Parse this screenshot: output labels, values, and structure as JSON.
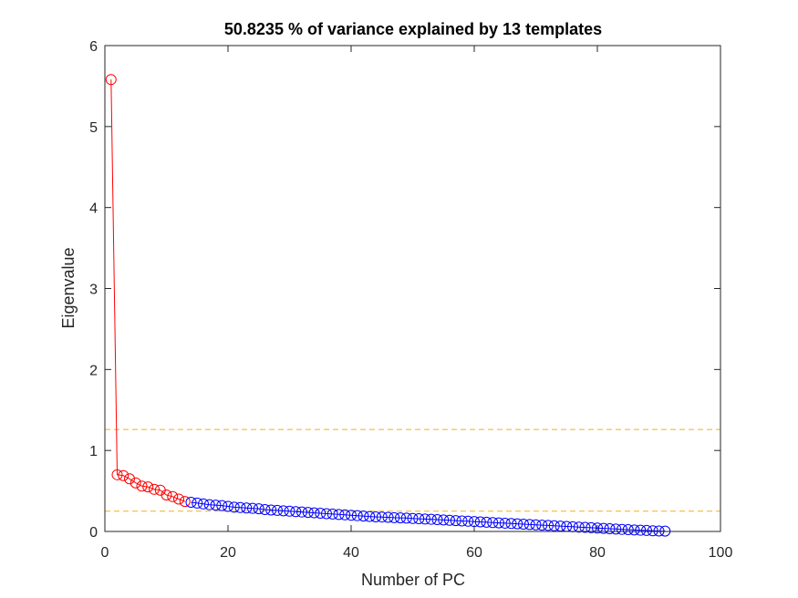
{
  "chart_data": {
    "type": "line",
    "title": "50.8235 % of variance explained by 13 templates",
    "xlabel": "Number of PC",
    "ylabel": "Eigenvalue",
    "xlim": [
      0,
      100
    ],
    "ylim": [
      0,
      6
    ],
    "xticks": [
      "0",
      "20",
      "40",
      "60",
      "80",
      "100"
    ],
    "yticks": [
      "0",
      "1",
      "2",
      "3",
      "4",
      "5",
      "6"
    ],
    "grid": false,
    "reference_lines": [
      1.26,
      0.25
    ],
    "colors": {
      "selected": "#ff0000",
      "remaining": "#0000ff",
      "reference": "#edb120",
      "axis": "#262626"
    },
    "series": [
      {
        "x": [
          1,
          2,
          3,
          4,
          5,
          6,
          7,
          8,
          9,
          10,
          11,
          12,
          13
        ],
        "values": [
          5.58,
          0.7,
          0.69,
          0.65,
          0.6,
          0.56,
          0.55,
          0.52,
          0.51,
          0.45,
          0.43,
          0.4,
          0.37
        ]
      },
      {
        "x": [
          14,
          15,
          16,
          17,
          18,
          19,
          20,
          21,
          22,
          23,
          24,
          25,
          26,
          27,
          28,
          29,
          30,
          31,
          32,
          33,
          34,
          35,
          36,
          37,
          38,
          39,
          40,
          41,
          42,
          43,
          44,
          45,
          46,
          47,
          48,
          49,
          50,
          51,
          52,
          53,
          54,
          55,
          56,
          57,
          58,
          59,
          60,
          61,
          62,
          63,
          64,
          65,
          66,
          67,
          68,
          69,
          70,
          71,
          72,
          73,
          74,
          75,
          76,
          77,
          78,
          79,
          80,
          81,
          82,
          83,
          84,
          85,
          86,
          87,
          88,
          89,
          90,
          91
        ],
        "values": [
          0.36,
          0.35,
          0.34,
          0.33,
          0.325,
          0.32,
          0.31,
          0.3,
          0.295,
          0.29,
          0.285,
          0.28,
          0.27,
          0.265,
          0.26,
          0.255,
          0.25,
          0.245,
          0.24,
          0.235,
          0.23,
          0.225,
          0.22,
          0.215,
          0.21,
          0.205,
          0.2,
          0.195,
          0.19,
          0.185,
          0.18,
          0.178,
          0.175,
          0.17,
          0.168,
          0.165,
          0.16,
          0.157,
          0.153,
          0.15,
          0.146,
          0.142,
          0.138,
          0.134,
          0.13,
          0.126,
          0.122,
          0.118,
          0.114,
          0.11,
          0.106,
          0.102,
          0.098,
          0.094,
          0.09,
          0.086,
          0.082,
          0.078,
          0.074,
          0.07,
          0.066,
          0.062,
          0.058,
          0.054,
          0.05,
          0.046,
          0.042,
          0.038,
          0.034,
          0.03,
          0.026,
          0.022,
          0.018,
          0.015,
          0.012,
          0.009,
          0.006,
          0.004
        ]
      }
    ]
  }
}
